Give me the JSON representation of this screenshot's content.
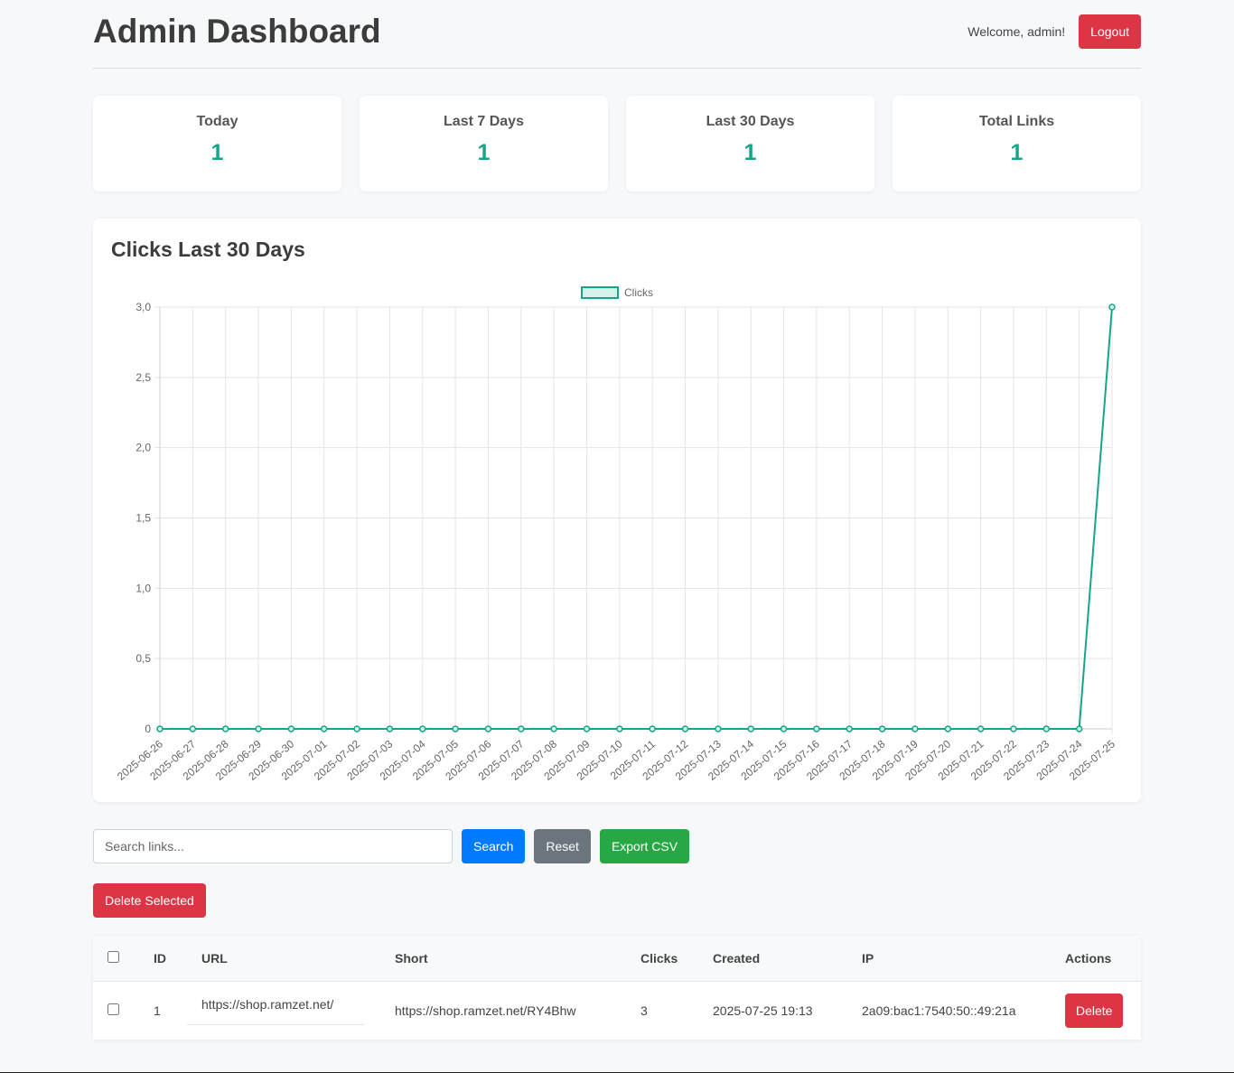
{
  "header": {
    "title": "Admin Dashboard",
    "welcome": "Welcome, admin!",
    "logout_label": "Logout"
  },
  "stats": [
    {
      "label": "Today",
      "value": "1"
    },
    {
      "label": "Last 7 Days",
      "value": "1"
    },
    {
      "label": "Last 30 Days",
      "value": "1"
    },
    {
      "label": "Total Links",
      "value": "1"
    }
  ],
  "chart": {
    "title": "Clicks Last 30 Days"
  },
  "chart_data": {
    "type": "line",
    "title": "Clicks Last 30 Days",
    "x": [
      "2025-06-26",
      "2025-06-27",
      "2025-06-28",
      "2025-06-29",
      "2025-06-30",
      "2025-07-01",
      "2025-07-02",
      "2025-07-03",
      "2025-07-04",
      "2025-07-05",
      "2025-07-06",
      "2025-07-07",
      "2025-07-08",
      "2025-07-09",
      "2025-07-10",
      "2025-07-11",
      "2025-07-12",
      "2025-07-13",
      "2025-07-14",
      "2025-07-15",
      "2025-07-16",
      "2025-07-17",
      "2025-07-18",
      "2025-07-19",
      "2025-07-20",
      "2025-07-21",
      "2025-07-22",
      "2025-07-23",
      "2025-07-24",
      "2025-07-25"
    ],
    "series": [
      {
        "name": "Clicks",
        "values": [
          0,
          0,
          0,
          0,
          0,
          0,
          0,
          0,
          0,
          0,
          0,
          0,
          0,
          0,
          0,
          0,
          0,
          0,
          0,
          0,
          0,
          0,
          0,
          0,
          0,
          0,
          0,
          0,
          0,
          3
        ]
      }
    ],
    "ylim": [
      0,
      3
    ],
    "yticks": [
      "0",
      "0,5",
      "1,0",
      "1,5",
      "2,0",
      "2,5",
      "3,0"
    ],
    "grid": true,
    "legend": "top-center",
    "colors": {
      "line": "#17a589",
      "fill": "#d4f1ea"
    }
  },
  "controls": {
    "search_placeholder": "Search links...",
    "search_label": "Search",
    "reset_label": "Reset",
    "export_label": "Export CSV",
    "delete_selected_label": "Delete Selected"
  },
  "table": {
    "headers": {
      "id": "ID",
      "url": "URL",
      "short": "Short",
      "clicks": "Clicks",
      "created": "Created",
      "ip": "IP",
      "actions": "Actions"
    },
    "rows": [
      {
        "id": "1",
        "url": "https://shop.ramzet.net/",
        "short": "https://shop.ramzet.net/RY4Bhw",
        "clicks": "3",
        "created": "2025-07-25 19:13",
        "ip": "2a09:bac1:7540:50::49:21a",
        "action_label": "Delete"
      }
    ]
  }
}
